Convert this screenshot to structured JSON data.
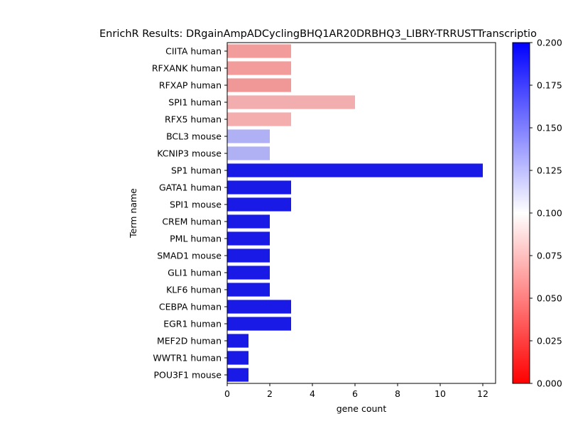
{
  "chart_data": {
    "type": "bar",
    "orientation": "horizontal",
    "title": "EnrichR Results: DRgainAmpADCyclingBHQ1AR20DRBHQ3_LIBRY-TRRUSTTranscriptio",
    "xlabel": "gene count",
    "ylabel": "Term name",
    "xlim": [
      0,
      12.6
    ],
    "xticks": [
      0,
      2,
      4,
      6,
      8,
      10,
      12
    ],
    "grid": false,
    "categories": [
      "CIITA human",
      "RFXANK human",
      "RFXAP human",
      "SPI1 human",
      "RFX5 human",
      "BCL3 mouse",
      "KCNIP3 mouse",
      "SP1 human",
      "GATA1 human",
      "SPI1 mouse",
      "CREM human",
      "PML human",
      "SMAD1 mouse",
      "GLI1 human",
      "KLF6 human",
      "CEBPA human",
      "EGR1 human",
      "MEF2D human",
      "WWTR1 human",
      "POU3F1 mouse"
    ],
    "values": [
      3,
      3,
      3,
      6,
      3,
      2,
      2,
      12,
      3,
      3,
      2,
      2,
      2,
      2,
      2,
      3,
      3,
      1,
      1,
      1
    ],
    "bar_colors": [
      "#f29c9c",
      "#f29c9c",
      "#f09898",
      "#f2aeae",
      "#f4aeae",
      "#b0b0f4",
      "#b0b0f4",
      "#1a1ae6",
      "#1a1ae6",
      "#1a1ae6",
      "#1a1ae6",
      "#1a1ae6",
      "#1a1ae6",
      "#1a1ae6",
      "#1a1ae6",
      "#1a1ae6",
      "#1a1ae6",
      "#1a1ae6",
      "#1a1ae6",
      "#1a1ae6"
    ],
    "colorbar": {
      "min": 0.0,
      "max": 0.2,
      "colormap": "bwr_r",
      "colors": [
        "#ff0000",
        "#ffffff",
        "#0000ff"
      ],
      "ticks": [
        "0.000",
        "0.025",
        "0.050",
        "0.075",
        "0.100",
        "0.125",
        "0.150",
        "0.175",
        "0.200"
      ]
    }
  }
}
